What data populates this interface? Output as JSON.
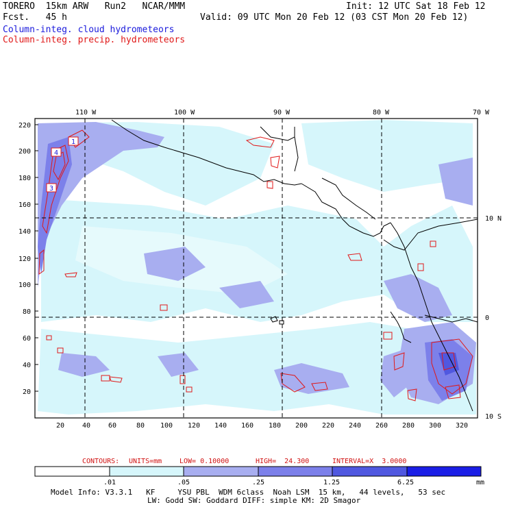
{
  "header": {
    "model": "TORERO  15km ARW   Run2   NCAR/MMM",
    "init": "Init: 12 UTC Sat 18 Feb 12",
    "fcst": "Fcst.   45 h",
    "valid": "Valid: 09 UTC Mon 20 Feb 12 (03 CST Mon 20 Feb 12)",
    "line_cloud": "Column-integ. cloud hydrometeors",
    "line_precip": "Column-integ. precip. hydrometeors"
  },
  "lon_labels": [
    "110 W",
    "100 W",
    "90 W",
    "80 W",
    "70 W"
  ],
  "lat_labels": [
    "10 N",
    "0",
    "10 S"
  ],
  "grid_y_labels": [
    "220",
    "200",
    "180",
    "160",
    "140",
    "120",
    "100",
    "80",
    "60",
    "40",
    "20"
  ],
  "grid_x_labels": [
    "20",
    "40",
    "60",
    "80",
    "100",
    "120",
    "140",
    "160",
    "180",
    "200",
    "220",
    "240",
    "260",
    "280",
    "300",
    "320"
  ],
  "contour_info": {
    "label": "CONTOURS:",
    "units": "UNITS=mm",
    "low": "LOW= 0.10000",
    "high": "HIGH=  24.300",
    "interval": "INTERVAL=X  3.0000"
  },
  "colorbar": {
    "ticks": [
      ".01",
      ".05",
      ".25",
      "1.25",
      "6.25"
    ],
    "unit": "mm",
    "colors": [
      "#ffffff",
      "#d6f6fb",
      "#a8aef0",
      "#7c80ea",
      "#5058e0",
      "#1a1ee6"
    ]
  },
  "footer": {
    "line1": "Model Info: V3.3.1   KF     YSU PBL  WDM 6class  Noah LSM  15 km,   44 levels,   53 sec",
    "line2": "LW: Godd SW: Goddard DIFF: simple KM: 2D Smagor"
  },
  "legend_colors": {
    "cloud": "#1a1adc",
    "precip": "#e01818"
  }
}
